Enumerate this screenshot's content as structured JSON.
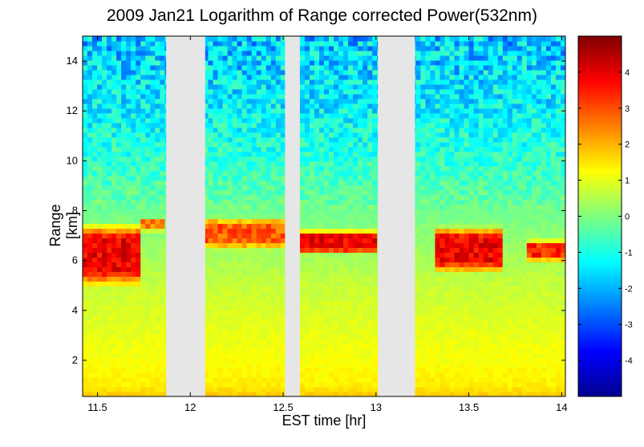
{
  "chart_data": {
    "type": "heatmap",
    "title": "2009 Jan21  Logarithm of Range corrected Power(532nm)",
    "xlabel": "EST time [hr]",
    "ylabel": "Range [km]",
    "xlim": [
      11.42,
      14.02
    ],
    "ylim": [
      0.55,
      15.0
    ],
    "xticks": [
      11.5,
      12,
      12.5,
      13,
      13.5,
      14
    ],
    "xtick_labels": [
      "11.5",
      "12",
      "12.5",
      "13",
      "13.5",
      "14"
    ],
    "yticks": [
      2,
      4,
      6,
      8,
      10,
      12,
      14
    ],
    "ytick_labels": [
      "2",
      "4",
      "6",
      "8",
      "10",
      "12",
      "14"
    ],
    "colorbar": {
      "lim": [
        -5,
        5
      ],
      "ticks": [
        -4,
        -3,
        -2,
        -1,
        0,
        1,
        2,
        3,
        4
      ],
      "tick_labels": [
        "-4",
        "-3",
        "-2",
        "-1",
        "0",
        "1",
        "2",
        "3",
        "4"
      ],
      "colormap": "jet"
    },
    "data_gaps": [
      {
        "start": 11.87,
        "end": 12.08
      },
      {
        "start": 12.51,
        "end": 12.59
      },
      {
        "start": 13.01,
        "end": 13.21
      }
    ],
    "gap_color": "#e6e6e6",
    "cloud_layers": [
      {
        "t_start": 11.42,
        "t_end": 11.72,
        "bottom_km": 5.1,
        "top_km": 7.4,
        "peak_value": 4.5
      },
      {
        "t_start": 11.72,
        "t_end": 11.87,
        "bottom_km": 7.2,
        "top_km": 7.7,
        "peak_value": 3.0
      },
      {
        "t_start": 12.08,
        "t_end": 12.51,
        "bottom_km": 6.5,
        "top_km": 7.7,
        "peak_value": 3.5
      },
      {
        "t_start": 12.59,
        "t_end": 13.01,
        "bottom_km": 6.3,
        "top_km": 7.2,
        "peak_value": 4.5
      },
      {
        "t_start": 13.33,
        "t_end": 13.68,
        "bottom_km": 5.6,
        "top_km": 7.3,
        "peak_value": 4.5
      },
      {
        "t_start": 13.8,
        "t_end": 14.02,
        "bottom_km": 6.0,
        "top_km": 6.8,
        "peak_value": 4.0
      }
    ],
    "background_profile": [
      {
        "range_km": 0.55,
        "value": 1.8
      },
      {
        "range_km": 1.0,
        "value": 1.4
      },
      {
        "range_km": 2.0,
        "value": 1.2
      },
      {
        "range_km": 5.0,
        "value": 0.7
      },
      {
        "range_km": 7.5,
        "value": 0.0
      },
      {
        "range_km": 10.0,
        "value": -0.8
      },
      {
        "range_km": 12.0,
        "value": -1.3
      },
      {
        "range_km": 15.0,
        "value": -1.8
      }
    ]
  }
}
